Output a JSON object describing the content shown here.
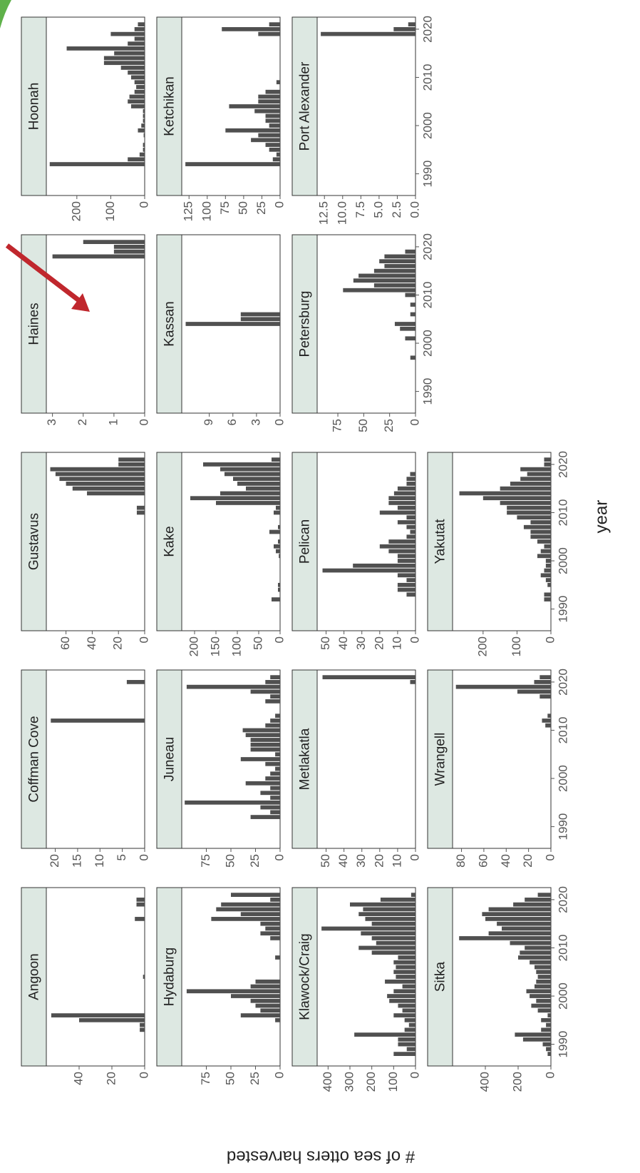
{
  "axis_labels": {
    "y": "# of sea otters harvested",
    "x": "year"
  },
  "chart_data": [
    {
      "type": "bar",
      "title": "Angoon",
      "color": "#505050",
      "xlim": [
        1985.5,
        2022.5
      ],
      "ylim": [
        0,
        60
      ],
      "yticks": [
        0,
        20,
        40
      ],
      "x": [
        1993,
        1994,
        1995,
        1996,
        2004,
        2016,
        2019,
        2020
      ],
      "values": [
        3,
        3,
        40,
        57,
        1,
        6,
        5,
        5
      ]
    },
    {
      "type": "bar",
      "title": "Coffman Cove",
      "color": "#505050",
      "xlim": [
        1985.5,
        2022.5
      ],
      "ylim": [
        0,
        22
      ],
      "yticks": [
        0,
        5,
        10,
        15,
        20
      ],
      "x": [
        2012,
        2020
      ],
      "values": [
        21,
        4
      ]
    },
    {
      "type": "bar",
      "title": "Gustavus",
      "color": "#505050",
      "xlim": [
        1985.5,
        2022.5
      ],
      "ylim": [
        0,
        75
      ],
      "yticks": [
        0,
        20,
        40,
        60
      ],
      "x": [
        2010,
        2011,
        2014,
        2015,
        2016,
        2017,
        2018,
        2019,
        2020,
        2021
      ],
      "values": [
        6,
        6,
        44,
        55,
        60,
        65,
        68,
        72,
        20,
        20
      ]
    },
    {
      "type": "bar",
      "title": "Haines",
      "color": "#505050",
      "xlim": [
        1985.5,
        2022.5
      ],
      "ylim": [
        0,
        3.2
      ],
      "yticks": [
        0,
        1,
        2,
        3
      ],
      "x": [
        2018,
        2019,
        2020,
        2021
      ],
      "values": [
        3,
        1,
        1,
        2
      ]
    },
    {
      "type": "bar",
      "title": "Hoonah",
      "color": "#505050",
      "xlim": [
        1985.5,
        2022.5
      ],
      "ylim": [
        0,
        290
      ],
      "yticks": [
        0,
        100,
        200
      ],
      "x": [
        1992,
        1993,
        1994,
        1995,
        1996,
        1998,
        1999,
        2000,
        2001,
        2002,
        2003,
        2004,
        2005,
        2006,
        2007,
        2008,
        2009,
        2010,
        2011,
        2012,
        2013,
        2014,
        2015,
        2016,
        2017,
        2018,
        2019,
        2020,
        2021
      ],
      "values": [
        280,
        50,
        15,
        5,
        5,
        3,
        20,
        10,
        5,
        5,
        5,
        40,
        50,
        45,
        30,
        25,
        30,
        40,
        50,
        70,
        120,
        120,
        90,
        230,
        50,
        30,
        100,
        30,
        20
      ]
    },
    {
      "type": "bar",
      "title": "Hydaburg",
      "color": "#505050",
      "xlim": [
        1985.5,
        2022.5
      ],
      "ylim": [
        0,
        100
      ],
      "yticks": [
        0,
        25,
        50,
        75
      ],
      "x": [
        1995,
        1996,
        1997,
        1998,
        1999,
        2000,
        2001,
        2002,
        2003,
        2008,
        2012,
        2013,
        2014,
        2015,
        2016,
        2017,
        2018,
        2019,
        2020,
        2021
      ],
      "values": [
        5,
        40,
        20,
        25,
        30,
        50,
        95,
        30,
        25,
        5,
        10,
        20,
        15,
        20,
        70,
        40,
        65,
        60,
        10,
        50
      ]
    },
    {
      "type": "bar",
      "title": "Juneau",
      "color": "#505050",
      "xlim": [
        1985.5,
        2022.5
      ],
      "ylim": [
        0,
        100
      ],
      "yticks": [
        0,
        25,
        50,
        75
      ],
      "x": [
        1992,
        1993,
        1994,
        1995,
        1996,
        1997,
        1998,
        1999,
        2000,
        2001,
        2002,
        2003,
        2004,
        2005,
        2006,
        2007,
        2008,
        2009,
        2010,
        2011,
        2012,
        2013,
        2016,
        2017,
        2018,
        2019,
        2020,
        2021
      ],
      "values": [
        30,
        10,
        20,
        97,
        10,
        20,
        10,
        35,
        15,
        10,
        5,
        15,
        40,
        5,
        30,
        30,
        30,
        35,
        38,
        15,
        10,
        5,
        15,
        10,
        30,
        95,
        15,
        10
      ]
    },
    {
      "type": "bar",
      "title": "Kake",
      "color": "#505050",
      "xlim": [
        1985.5,
        2022.5
      ],
      "ylim": [
        0,
        230
      ],
      "yticks": [
        0,
        50,
        100,
        150,
        200
      ],
      "x": [
        1992,
        1994,
        1995,
        2001,
        2002,
        2003,
        2004,
        2006,
        2007,
        2010,
        2011,
        2012,
        2013,
        2014,
        2015,
        2016,
        2017,
        2018,
        2019,
        2020,
        2021
      ],
      "values": [
        20,
        5,
        5,
        3,
        10,
        15,
        5,
        25,
        5,
        15,
        10,
        150,
        210,
        140,
        80,
        100,
        110,
        130,
        140,
        180,
        20
      ]
    },
    {
      "type": "bar",
      "title": "Kassan",
      "color": "#505050",
      "xlim": [
        1985.5,
        2022.5
      ],
      "ylim": [
        0,
        12.5
      ],
      "yticks": [
        0,
        3,
        6,
        9
      ],
      "x": [
        2004,
        2005,
        2006
      ],
      "values": [
        12,
        5,
        5
      ]
    },
    {
      "type": "bar",
      "title": "Ketchikan",
      "color": "#505050",
      "xlim": [
        1985.5,
        2022.5
      ],
      "ylim": [
        0,
        135
      ],
      "yticks": [
        0,
        25,
        50,
        75,
        100,
        125
      ],
      "x": [
        1992,
        1993,
        1994,
        1995,
        1996,
        1997,
        1998,
        1999,
        2000,
        2001,
        2002,
        2003,
        2004,
        2005,
        2006,
        2007,
        2009,
        2019,
        2020,
        2021
      ],
      "values": [
        130,
        10,
        5,
        15,
        20,
        40,
        30,
        75,
        15,
        20,
        20,
        35,
        70,
        30,
        30,
        20,
        5,
        30,
        80,
        15
      ]
    },
    {
      "type": "bar",
      "title": "Klawock/Craig",
      "color": "#505050",
      "xlim": [
        1985.5,
        2022.5
      ],
      "ylim": [
        0,
        450
      ],
      "yticks": [
        0,
        100,
        200,
        300,
        400
      ],
      "x": [
        1988,
        1989,
        1990,
        1991,
        1992,
        1993,
        1994,
        1995,
        1996,
        1997,
        1998,
        1999,
        2000,
        2001,
        2002,
        2003,
        2004,
        2005,
        2006,
        2007,
        2008,
        2009,
        2010,
        2011,
        2012,
        2013,
        2014,
        2015,
        2016,
        2017,
        2018,
        2019,
        2020,
        2021
      ],
      "values": [
        100,
        40,
        80,
        80,
        280,
        50,
        30,
        50,
        100,
        60,
        80,
        120,
        130,
        100,
        60,
        140,
        90,
        100,
        90,
        100,
        80,
        200,
        260,
        180,
        200,
        250,
        430,
        200,
        230,
        260,
        240,
        300,
        160,
        20
      ]
    },
    {
      "type": "bar",
      "title": "Metlakatla",
      "color": "#505050",
      "xlim": [
        1985.5,
        2022.5
      ],
      "ylim": [
        0,
        55
      ],
      "yticks": [
        0,
        10,
        20,
        30,
        40,
        50
      ],
      "x": [
        2020,
        2021
      ],
      "values": [
        3,
        52
      ]
    },
    {
      "type": "bar",
      "title": "Pelican",
      "color": "#505050",
      "xlim": [
        1985.5,
        2022.5
      ],
      "ylim": [
        0,
        55
      ],
      "yticks": [
        0,
        10,
        20,
        30,
        40,
        50
      ],
      "x": [
        1993,
        1994,
        1995,
        1996,
        1997,
        1998,
        1999,
        2000,
        2001,
        2002,
        2003,
        2004,
        2005,
        2006,
        2007,
        2008,
        2009,
        2010,
        2011,
        2012,
        2013,
        2014,
        2015,
        2016,
        2017,
        2018
      ],
      "values": [
        5,
        10,
        10,
        5,
        10,
        52,
        35,
        10,
        10,
        15,
        20,
        15,
        5,
        3,
        5,
        10,
        5,
        20,
        10,
        15,
        15,
        12,
        10,
        5,
        5,
        3
      ]
    },
    {
      "type": "bar",
      "title": "Petersburg",
      "color": "#505050",
      "xlim": [
        1985.5,
        2022.5
      ],
      "ylim": [
        0,
        95
      ],
      "yticks": [
        0,
        25,
        50,
        75
      ],
      "xticks": [
        1990,
        2000,
        2010,
        2020
      ],
      "x": [
        1997,
        2001,
        2003,
        2004,
        2006,
        2008,
        2010,
        2011,
        2012,
        2013,
        2014,
        2015,
        2016,
        2017,
        2018,
        2019
      ],
      "values": [
        5,
        10,
        15,
        20,
        5,
        5,
        10,
        70,
        40,
        60,
        55,
        40,
        30,
        35,
        30,
        10
      ]
    },
    {
      "type": "bar",
      "title": "Port Alexander",
      "color": "#505050",
      "xlim": [
        1985.5,
        2022.5
      ],
      "ylim": [
        0,
        13.5
      ],
      "yticks": [
        {
          "value": 0,
          "label": "0.0"
        },
        2.5,
        {
          "value": 5,
          "label": "5.0"
        },
        7.5,
        {
          "value": 10,
          "label": "10.0"
        },
        12.5
      ],
      "xticks": [
        1990,
        2000,
        2010,
        2020
      ],
      "x": [
        2019,
        2020,
        2021
      ],
      "values": [
        13,
        3,
        1
      ]
    },
    {
      "type": "bar",
      "title": "Sitka",
      "color": "#505050",
      "xlim": [
        1985.5,
        2022.5
      ],
      "ylim": [
        0,
        600
      ],
      "yticks": [
        0,
        200,
        400
      ],
      "xticks": [
        1990,
        2000,
        2010,
        2020
      ],
      "x": [
        1988,
        1989,
        1990,
        1991,
        1992,
        1993,
        1994,
        1995,
        1996,
        1997,
        1998,
        1999,
        2000,
        2001,
        2002,
        2003,
        2004,
        2005,
        2006,
        2007,
        2008,
        2009,
        2010,
        2011,
        2012,
        2013,
        2014,
        2015,
        2016,
        2017,
        2018,
        2019,
        2020,
        2021
      ],
      "values": [
        20,
        30,
        50,
        170,
        220,
        60,
        30,
        60,
        20,
        80,
        120,
        90,
        130,
        150,
        100,
        90,
        80,
        90,
        100,
        130,
        200,
        190,
        160,
        250,
        560,
        380,
        300,
        330,
        400,
        420,
        380,
        230,
        160,
        80
      ]
    },
    {
      "type": "bar",
      "title": "Wrangell",
      "color": "#505050",
      "xlim": [
        1985.5,
        2022.5
      ],
      "ylim": [
        0,
        88
      ],
      "yticks": [
        0,
        20,
        40,
        60,
        80
      ],
      "xticks": [
        1990,
        2000,
        2010,
        2020
      ],
      "x": [
        2011,
        2012,
        2013,
        2017,
        2018,
        2019,
        2020,
        2021
      ],
      "values": [
        5,
        8,
        3,
        10,
        30,
        85,
        15,
        10
      ]
    },
    {
      "type": "bar",
      "title": "Yakutat",
      "color": "#505050",
      "xlim": [
        1985.5,
        2022.5
      ],
      "ylim": [
        0,
        290
      ],
      "yticks": [
        0,
        100,
        200
      ],
      "xticks": [
        1990,
        2000,
        2010,
        2020
      ],
      "x": [
        1992,
        1993,
        1995,
        1996,
        1997,
        1998,
        1999,
        2000,
        2001,
        2002,
        2003,
        2004,
        2005,
        2006,
        2007,
        2008,
        2009,
        2010,
        2011,
        2012,
        2013,
        2014,
        2015,
        2016,
        2017,
        2018,
        2019,
        2020,
        2021
      ],
      "values": [
        20,
        20,
        10,
        15,
        30,
        20,
        15,
        15,
        40,
        30,
        20,
        40,
        60,
        60,
        80,
        60,
        100,
        130,
        130,
        150,
        200,
        270,
        150,
        120,
        90,
        70,
        90,
        20,
        20
      ]
    }
  ]
}
